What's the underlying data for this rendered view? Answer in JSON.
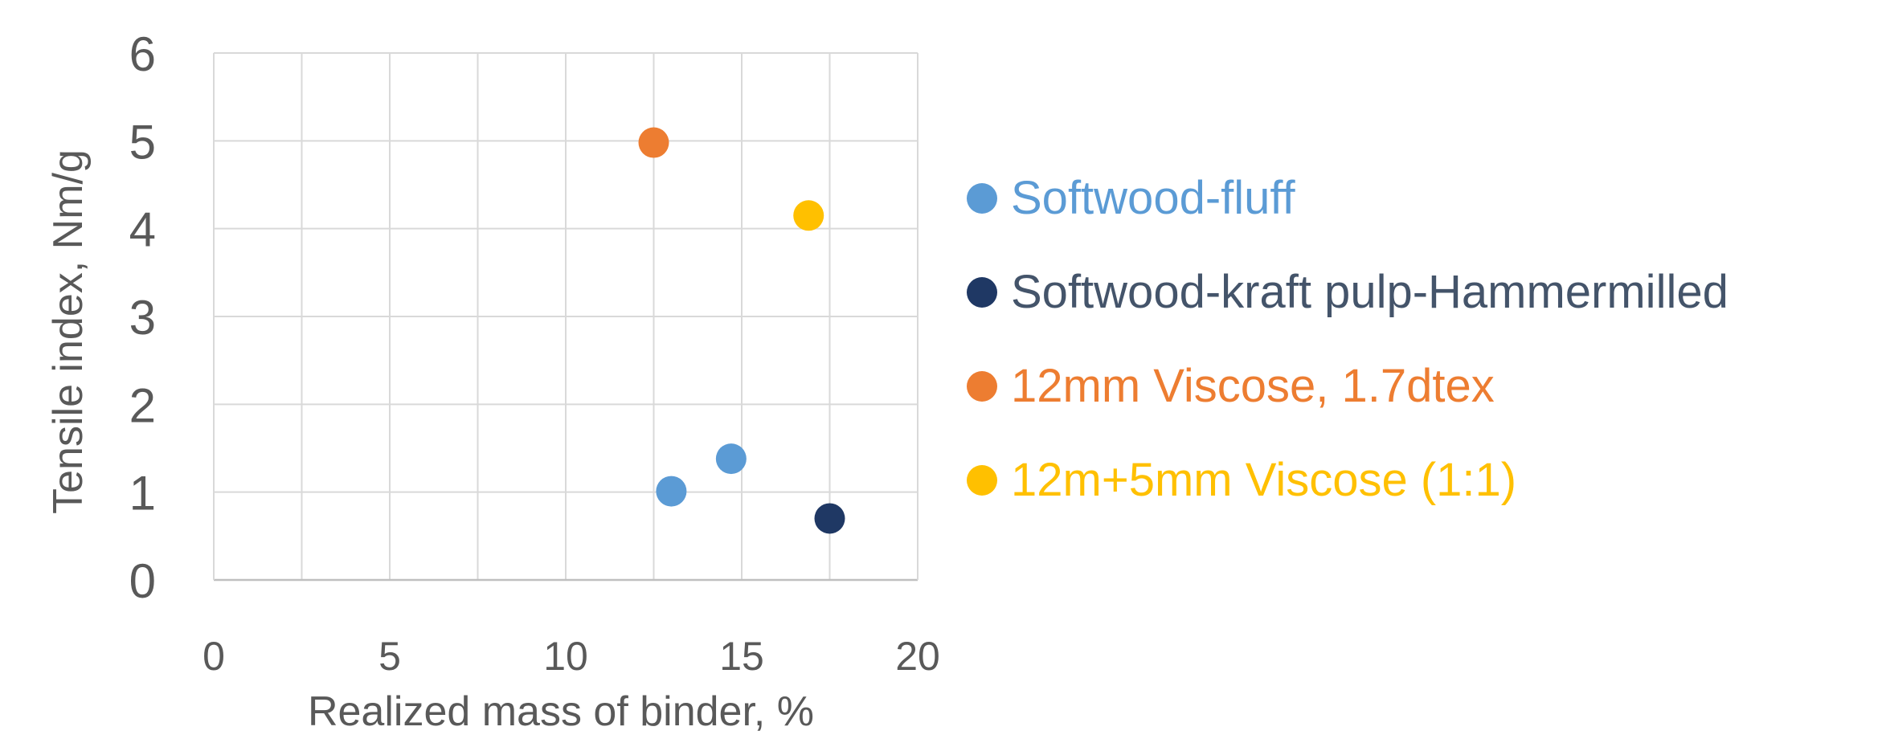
{
  "chart_data": {
    "type": "scatter",
    "title": "",
    "xlabel": "Realized mass of binder, %",
    "ylabel": "Tensile index, Nm/g",
    "xlim": [
      0,
      20
    ],
    "ylim": [
      0,
      6
    ],
    "xticks": [
      0,
      5,
      10,
      15,
      20
    ],
    "yticks": [
      0,
      1,
      2,
      3,
      4,
      5,
      6
    ],
    "grid": true,
    "legend_position": "right",
    "series": [
      {
        "name": "Softwood-fluff",
        "color": "#5B9BD5",
        "points": [
          {
            "x": 13.0,
            "y": 1.01
          },
          {
            "x": 14.7,
            "y": 1.38
          }
        ]
      },
      {
        "name": "Softwood-kraft pulp-Hammermilled",
        "color": "#1F3864",
        "points": [
          {
            "x": 17.5,
            "y": 0.7
          }
        ]
      },
      {
        "name": "12mm Viscose, 1.7dtex",
        "color": "#ED7D31",
        "points": [
          {
            "x": 12.5,
            "y": 4.98
          }
        ]
      },
      {
        "name": "12m+5mm Viscose (1:1)",
        "color": "#FFC000",
        "points": [
          {
            "x": 16.9,
            "y": 4.15
          }
        ]
      }
    ]
  },
  "colors": {
    "axis_text": "#595959",
    "gridline": "#D9D9D9",
    "axis_line": "#BFBFBF"
  }
}
